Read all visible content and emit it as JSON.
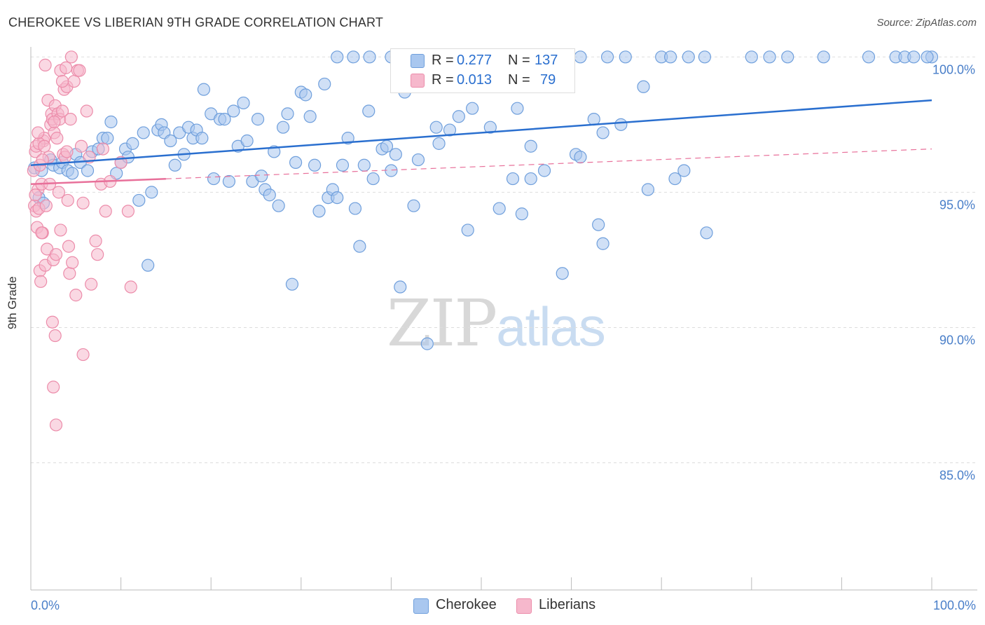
{
  "title": "CHEROKEE VS LIBERIAN 9TH GRADE CORRELATION CHART",
  "source": "Source: ZipAtlas.com",
  "watermark": {
    "part1": "ZIP",
    "part2": "atlas"
  },
  "colors": {
    "cherokee_fill": "#a9c7ef",
    "cherokee_stroke": "#6f9fdc",
    "cherokee_line": "#2a6fcf",
    "liberian_fill": "#f6b8cc",
    "liberian_stroke": "#ec8caa",
    "liberian_line": "#e8709a",
    "grid": "#dddddd",
    "axis_text": "#4a7fc9"
  },
  "legend": {
    "rows": [
      {
        "r_label": "R =",
        "r_value": "0.277",
        "n_label": "N =",
        "n_value": "137"
      },
      {
        "r_label": "R =",
        "r_value": "0.013",
        "n_label": "N =",
        "n_value": "79"
      }
    ]
  },
  "bottom_legend": [
    "Cherokee",
    "Liberians"
  ],
  "chart_data": {
    "type": "scatter",
    "title": "CHEROKEE VS LIBERIAN 9TH GRADE CORRELATION CHART",
    "xlabel": "",
    "ylabel": "9th Grade",
    "x_tick_labels": [
      "0.0%",
      "100.0%"
    ],
    "y_tick_labels": [
      "100.0%",
      "95.0%",
      "90.0%",
      "85.0%"
    ],
    "y_ticks": [
      100,
      95,
      90,
      85
    ],
    "xlim": [
      0,
      100
    ],
    "ylim": [
      80.3,
      100.5
    ],
    "grid": true,
    "series": [
      {
        "name": "Cherokee",
        "trend": {
          "x": [
            0,
            100
          ],
          "y": [
            96.0,
            98.4
          ],
          "style": "solid"
        },
        "points": [
          [
            0.4,
            95.9
          ],
          [
            0.9,
            94.8
          ],
          [
            1.2,
            95.8
          ],
          [
            1.4,
            94.6
          ],
          [
            2.2,
            96.2
          ],
          [
            2.5,
            96.0
          ],
          [
            3.2,
            95.9
          ],
          [
            3.5,
            96.1
          ],
          [
            4.1,
            95.8
          ],
          [
            4.6,
            95.7
          ],
          [
            5.0,
            96.4
          ],
          [
            5.5,
            96.1
          ],
          [
            6.3,
            95.8
          ],
          [
            6.8,
            96.5
          ],
          [
            7.5,
            96.6
          ],
          [
            8.0,
            97.0
          ],
          [
            8.5,
            97.0
          ],
          [
            8.9,
            97.6
          ],
          [
            9.5,
            95.7
          ],
          [
            10.0,
            96.1
          ],
          [
            10.5,
            96.6
          ],
          [
            10.8,
            96.3
          ],
          [
            11.3,
            96.8
          ],
          [
            12.0,
            94.7
          ],
          [
            12.5,
            97.2
          ],
          [
            13.0,
            92.3
          ],
          [
            13.4,
            95.0
          ],
          [
            14.1,
            97.3
          ],
          [
            14.5,
            97.5
          ],
          [
            14.8,
            97.2
          ],
          [
            15.5,
            96.9
          ],
          [
            16.0,
            96.0
          ],
          [
            16.5,
            97.2
          ],
          [
            17.0,
            96.4
          ],
          [
            17.5,
            97.4
          ],
          [
            18.0,
            97.0
          ],
          [
            18.4,
            97.3
          ],
          [
            19.0,
            97.0
          ],
          [
            19.2,
            98.8
          ],
          [
            20.0,
            97.9
          ],
          [
            20.3,
            95.5
          ],
          [
            21.0,
            97.7
          ],
          [
            21.5,
            97.7
          ],
          [
            22.0,
            95.4
          ],
          [
            22.5,
            98.0
          ],
          [
            23.0,
            96.7
          ],
          [
            23.6,
            98.3
          ],
          [
            24.0,
            96.9
          ],
          [
            24.6,
            95.4
          ],
          [
            25.2,
            97.7
          ],
          [
            25.6,
            95.6
          ],
          [
            26.0,
            95.1
          ],
          [
            26.5,
            94.9
          ],
          [
            27.0,
            96.5
          ],
          [
            27.5,
            94.5
          ],
          [
            28.0,
            97.4
          ],
          [
            28.5,
            97.9
          ],
          [
            29.0,
            91.6
          ],
          [
            29.4,
            96.1
          ],
          [
            30.0,
            98.7
          ],
          [
            30.5,
            98.6
          ],
          [
            31.0,
            97.8
          ],
          [
            31.5,
            96.0
          ],
          [
            32.0,
            94.3
          ],
          [
            32.6,
            99.0
          ],
          [
            33.0,
            94.8
          ],
          [
            33.5,
            95.1
          ],
          [
            34.0,
            94.8
          ],
          [
            34.6,
            96.0
          ],
          [
            35.2,
            97.0
          ],
          [
            36.0,
            94.4
          ],
          [
            36.5,
            93.0
          ],
          [
            37.0,
            96.0
          ],
          [
            37.5,
            98.0
          ],
          [
            38.0,
            95.5
          ],
          [
            39.0,
            96.6
          ],
          [
            39.5,
            96.7
          ],
          [
            40.0,
            95.8
          ],
          [
            40.5,
            96.4
          ],
          [
            41.0,
            91.5
          ],
          [
            41.5,
            98.7
          ],
          [
            42.5,
            94.5
          ],
          [
            43.0,
            96.2
          ],
          [
            44.0,
            89.4
          ],
          [
            45.0,
            97.4
          ],
          [
            45.3,
            96.8
          ],
          [
            46.5,
            97.3
          ],
          [
            47.5,
            97.8
          ],
          [
            48.5,
            93.6
          ],
          [
            49.0,
            98.1
          ],
          [
            51.0,
            97.4
          ],
          [
            52.0,
            94.4
          ],
          [
            53.5,
            95.5
          ],
          [
            54.0,
            98.1
          ],
          [
            54.5,
            94.2
          ],
          [
            55.5,
            96.7
          ],
          [
            55.5,
            95.5
          ],
          [
            57.0,
            95.8
          ],
          [
            59.0,
            92.0
          ],
          [
            60.5,
            96.4
          ],
          [
            61.0,
            96.3
          ],
          [
            62.5,
            97.7
          ],
          [
            63.0,
            93.8
          ],
          [
            63.5,
            97.2
          ],
          [
            63.5,
            93.1
          ],
          [
            65.5,
            97.5
          ],
          [
            68.0,
            98.9
          ],
          [
            68.5,
            95.1
          ],
          [
            71.5,
            95.5
          ],
          [
            72.5,
            95.8
          ],
          [
            75.0,
            93.5
          ],
          [
            34.0,
            100.0
          ],
          [
            35.8,
            100.0
          ],
          [
            37.6,
            100.0
          ],
          [
            40.0,
            100.0
          ],
          [
            42.0,
            100.0
          ],
          [
            45.0,
            100.0
          ],
          [
            47.0,
            100.0
          ],
          [
            48.0,
            100.0
          ],
          [
            50.0,
            100.0
          ],
          [
            52.0,
            100.0
          ],
          [
            54.0,
            100.0
          ],
          [
            56.0,
            100.0
          ],
          [
            58.0,
            100.0
          ],
          [
            61.0,
            100.0
          ],
          [
            64.0,
            100.0
          ],
          [
            66.0,
            100.0
          ],
          [
            70.0,
            100.0
          ],
          [
            71.0,
            100.0
          ],
          [
            73.0,
            100.0
          ],
          [
            74.8,
            100.0
          ],
          [
            80.0,
            100.0
          ],
          [
            82.0,
            100.0
          ],
          [
            84.0,
            100.0
          ],
          [
            88.0,
            100.0
          ],
          [
            93.0,
            100.0
          ],
          [
            96.0,
            100.0
          ],
          [
            97.0,
            100.0
          ],
          [
            98.0,
            100.0
          ],
          [
            100.0,
            100.0
          ],
          [
            99.5,
            100.0
          ]
        ]
      },
      {
        "name": "Liberians",
        "trend": {
          "x": [
            0,
            100
          ],
          "y": [
            95.3,
            96.6
          ],
          "style": "solid-then-dashed"
        },
        "points": [
          [
            0.3,
            95.8
          ],
          [
            0.4,
            94.5
          ],
          [
            0.5,
            96.5
          ],
          [
            0.6,
            94.3
          ],
          [
            0.7,
            93.7
          ],
          [
            0.8,
            95.1
          ],
          [
            0.9,
            94.4
          ],
          [
            1.0,
            96.0
          ],
          [
            1.0,
            92.1
          ],
          [
            1.1,
            91.7
          ],
          [
            1.2,
            95.3
          ],
          [
            1.3,
            93.5
          ],
          [
            1.4,
            96.9
          ],
          [
            1.5,
            97.0
          ],
          [
            1.6,
            92.3
          ],
          [
            1.7,
            94.5
          ],
          [
            1.8,
            92.9
          ],
          [
            1.9,
            98.4
          ],
          [
            2.0,
            96.3
          ],
          [
            2.1,
            95.3
          ],
          [
            2.2,
            97.5
          ],
          [
            2.3,
            97.9
          ],
          [
            2.4,
            97.7
          ],
          [
            2.5,
            92.5
          ],
          [
            2.6,
            97.2
          ],
          [
            2.7,
            98.2
          ],
          [
            2.8,
            92.7
          ],
          [
            2.9,
            97.0
          ],
          [
            3.0,
            97.9
          ],
          [
            3.1,
            95.0
          ],
          [
            3.2,
            97.7
          ],
          [
            3.3,
            99.5
          ],
          [
            3.5,
            98.0
          ],
          [
            3.6,
            96.4
          ],
          [
            3.7,
            98.8
          ],
          [
            3.8,
            96.3
          ],
          [
            3.9,
            99.6
          ],
          [
            4.0,
            98.9
          ],
          [
            4.1,
            94.7
          ],
          [
            4.2,
            93.0
          ],
          [
            4.3,
            92.0
          ],
          [
            4.4,
            97.7
          ],
          [
            4.5,
            100.0
          ],
          [
            4.6,
            92.4
          ],
          [
            4.8,
            99.1
          ],
          [
            5.0,
            91.2
          ],
          [
            5.2,
            99.5
          ],
          [
            5.4,
            99.5
          ],
          [
            5.6,
            96.7
          ],
          [
            5.8,
            94.6
          ],
          [
            6.2,
            98.0
          ],
          [
            6.5,
            96.3
          ],
          [
            6.7,
            91.6
          ],
          [
            7.2,
            93.2
          ],
          [
            7.4,
            92.7
          ],
          [
            7.8,
            95.3
          ],
          [
            8.0,
            96.6
          ],
          [
            8.3,
            94.3
          ],
          [
            8.8,
            95.4
          ],
          [
            10.0,
            96.1
          ],
          [
            10.8,
            94.3
          ],
          [
            11.1,
            91.5
          ],
          [
            1.6,
            99.7
          ],
          [
            2.4,
            90.2
          ],
          [
            2.5,
            87.8
          ],
          [
            2.6,
            97.6
          ],
          [
            2.7,
            89.7
          ],
          [
            2.8,
            86.4
          ],
          [
            3.3,
            93.6
          ],
          [
            3.5,
            99.1
          ],
          [
            4.0,
            96.5
          ],
          [
            5.8,
            89.0
          ],
          [
            0.6,
            96.7
          ],
          [
            0.9,
            96.8
          ],
          [
            1.2,
            93.5
          ],
          [
            1.5,
            96.7
          ],
          [
            0.5,
            94.9
          ],
          [
            0.8,
            97.2
          ],
          [
            1.3,
            96.2
          ]
        ]
      }
    ]
  }
}
